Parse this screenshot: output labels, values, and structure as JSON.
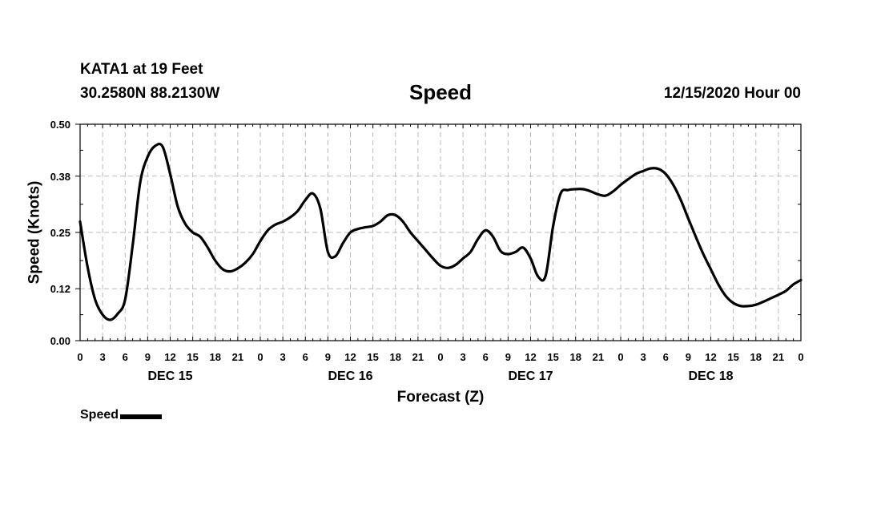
{
  "header": {
    "station": "KATA1 at 19 Feet",
    "coords": "30.2580N 88.2130W",
    "issued": "12/15/2020 Hour 00"
  },
  "legend": {
    "label": "Speed"
  },
  "chart_data": {
    "type": "line",
    "title": "Speed",
    "xlabel": "Forecast (Z)",
    "ylabel": "Speed (Knots)",
    "xlim": [
      0,
      96
    ],
    "ylim": [
      0.0,
      0.5
    ],
    "yticks": [
      0.0,
      0.12,
      0.25,
      0.38,
      0.5
    ],
    "ytick_labels": [
      "0.00",
      "0.12",
      "0.25",
      "0.38",
      "0.50"
    ],
    "xtick_labels": [
      "0",
      "3",
      "6",
      "9",
      "12",
      "15",
      "18",
      "21",
      "0",
      "3",
      "6",
      "9",
      "12",
      "15",
      "18",
      "21",
      "0",
      "3",
      "6",
      "9",
      "12",
      "15",
      "18",
      "21",
      "0",
      "3",
      "6",
      "9",
      "12",
      "15",
      "18",
      "21",
      "0"
    ],
    "day_labels": [
      {
        "label": "DEC 15",
        "at_hour": 12
      },
      {
        "label": "DEC 16",
        "at_hour": 36
      },
      {
        "label": "DEC 17",
        "at_hour": 60
      },
      {
        "label": "DEC 18",
        "at_hour": 84
      }
    ],
    "grid": true,
    "legend_position": "bottom-left",
    "color": "#000000",
    "series": [
      {
        "name": "Speed",
        "x": [
          0,
          1,
          2,
          3,
          4,
          5,
          6,
          7,
          8,
          9,
          10,
          11,
          12,
          13,
          14,
          15,
          16,
          17,
          18,
          19,
          20,
          21,
          22,
          23,
          24,
          25,
          26,
          27,
          28,
          29,
          30,
          31,
          32,
          33,
          34,
          35,
          36,
          37,
          38,
          39,
          40,
          41,
          42,
          43,
          44,
          45,
          46,
          47,
          48,
          49,
          50,
          51,
          52,
          53,
          54,
          55,
          56,
          57,
          58,
          59,
          60,
          61,
          62,
          63,
          64,
          65,
          66,
          67,
          68,
          69,
          70,
          71,
          72,
          73,
          74,
          75,
          76,
          77,
          78,
          79,
          80,
          81,
          82,
          83,
          84,
          85,
          86,
          87,
          88,
          89,
          90,
          91,
          92,
          93,
          94,
          95,
          96
        ],
        "values": [
          0.275,
          0.17,
          0.095,
          0.06,
          0.048,
          0.062,
          0.095,
          0.22,
          0.365,
          0.425,
          0.45,
          0.448,
          0.385,
          0.31,
          0.27,
          0.25,
          0.24,
          0.215,
          0.185,
          0.165,
          0.16,
          0.167,
          0.18,
          0.2,
          0.23,
          0.255,
          0.268,
          0.275,
          0.285,
          0.3,
          0.325,
          0.34,
          0.305,
          0.205,
          0.195,
          0.225,
          0.25,
          0.258,
          0.262,
          0.265,
          0.275,
          0.29,
          0.29,
          0.275,
          0.25,
          0.23,
          0.21,
          0.19,
          0.173,
          0.168,
          0.175,
          0.19,
          0.205,
          0.235,
          0.255,
          0.24,
          0.207,
          0.2,
          0.205,
          0.215,
          0.19,
          0.148,
          0.15,
          0.265,
          0.34,
          0.348,
          0.35,
          0.35,
          0.345,
          0.338,
          0.335,
          0.345,
          0.36,
          0.373,
          0.385,
          0.392,
          0.398,
          0.397,
          0.385,
          0.36,
          0.325,
          0.282,
          0.24,
          0.2,
          0.165,
          0.13,
          0.103,
          0.087,
          0.08,
          0.08,
          0.083,
          0.09,
          0.098,
          0.106,
          0.115,
          0.13,
          0.14
        ]
      }
    ]
  }
}
